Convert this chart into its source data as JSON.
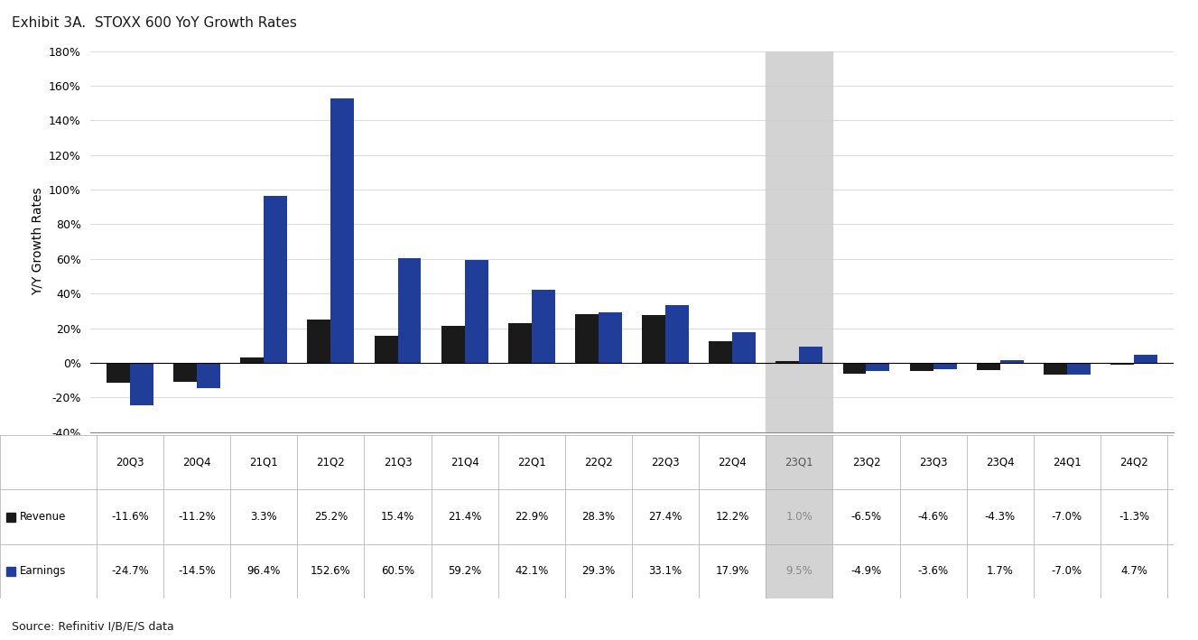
{
  "title": "Exhibit 3A.  STOXX 600 YoY Growth Rates",
  "ylabel": "Y/Y Growth Rates",
  "source": "Source: Refinitiv I/B/E/S data",
  "categories": [
    "20Q3",
    "20Q4",
    "21Q1",
    "21Q2",
    "21Q3",
    "21Q4",
    "22Q1",
    "22Q2",
    "22Q3",
    "22Q4",
    "23Q1",
    "23Q2",
    "23Q3",
    "23Q4",
    "24Q1",
    "24Q2"
  ],
  "revenue": [
    -11.6,
    -11.2,
    3.3,
    25.2,
    15.4,
    21.4,
    22.9,
    28.3,
    27.4,
    12.2,
    1.0,
    -6.5,
    -4.6,
    -4.3,
    -7.0,
    -1.3
  ],
  "earnings": [
    -24.7,
    -14.5,
    96.4,
    152.6,
    60.5,
    59.2,
    42.1,
    29.3,
    33.1,
    17.9,
    9.5,
    -4.9,
    -3.6,
    1.7,
    -7.0,
    4.7
  ],
  "revenue_labels": [
    "-11.6%",
    "-11.2%",
    "3.3%",
    "25.2%",
    "15.4%",
    "21.4%",
    "22.9%",
    "28.3%",
    "27.4%",
    "12.2%",
    "1.0%",
    "-6.5%",
    "-4.6%",
    "-4.3%",
    "-7.0%",
    "-1.3%"
  ],
  "earnings_labels": [
    "-24.7%",
    "-14.5%",
    "96.4%",
    "152.6%",
    "60.5%",
    "59.2%",
    "42.1%",
    "29.3%",
    "33.1%",
    "17.9%",
    "9.5%",
    "-4.9%",
    "-3.6%",
    "1.7%",
    "-7.0%",
    "4.7%"
  ],
  "highlight_index": 10,
  "highlight_color": "#d3d3d3",
  "revenue_color": "#1a1a1a",
  "earnings_color": "#1f3d99",
  "title_color": "#1a1a1a",
  "axis_line_color": "#4472c4",
  "ylim_min": -40,
  "ylim_max": 180,
  "yticks": [
    -40,
    -20,
    0,
    20,
    40,
    60,
    80,
    100,
    120,
    140,
    160,
    180
  ],
  "background_color": "#ffffff",
  "bar_width": 0.35
}
